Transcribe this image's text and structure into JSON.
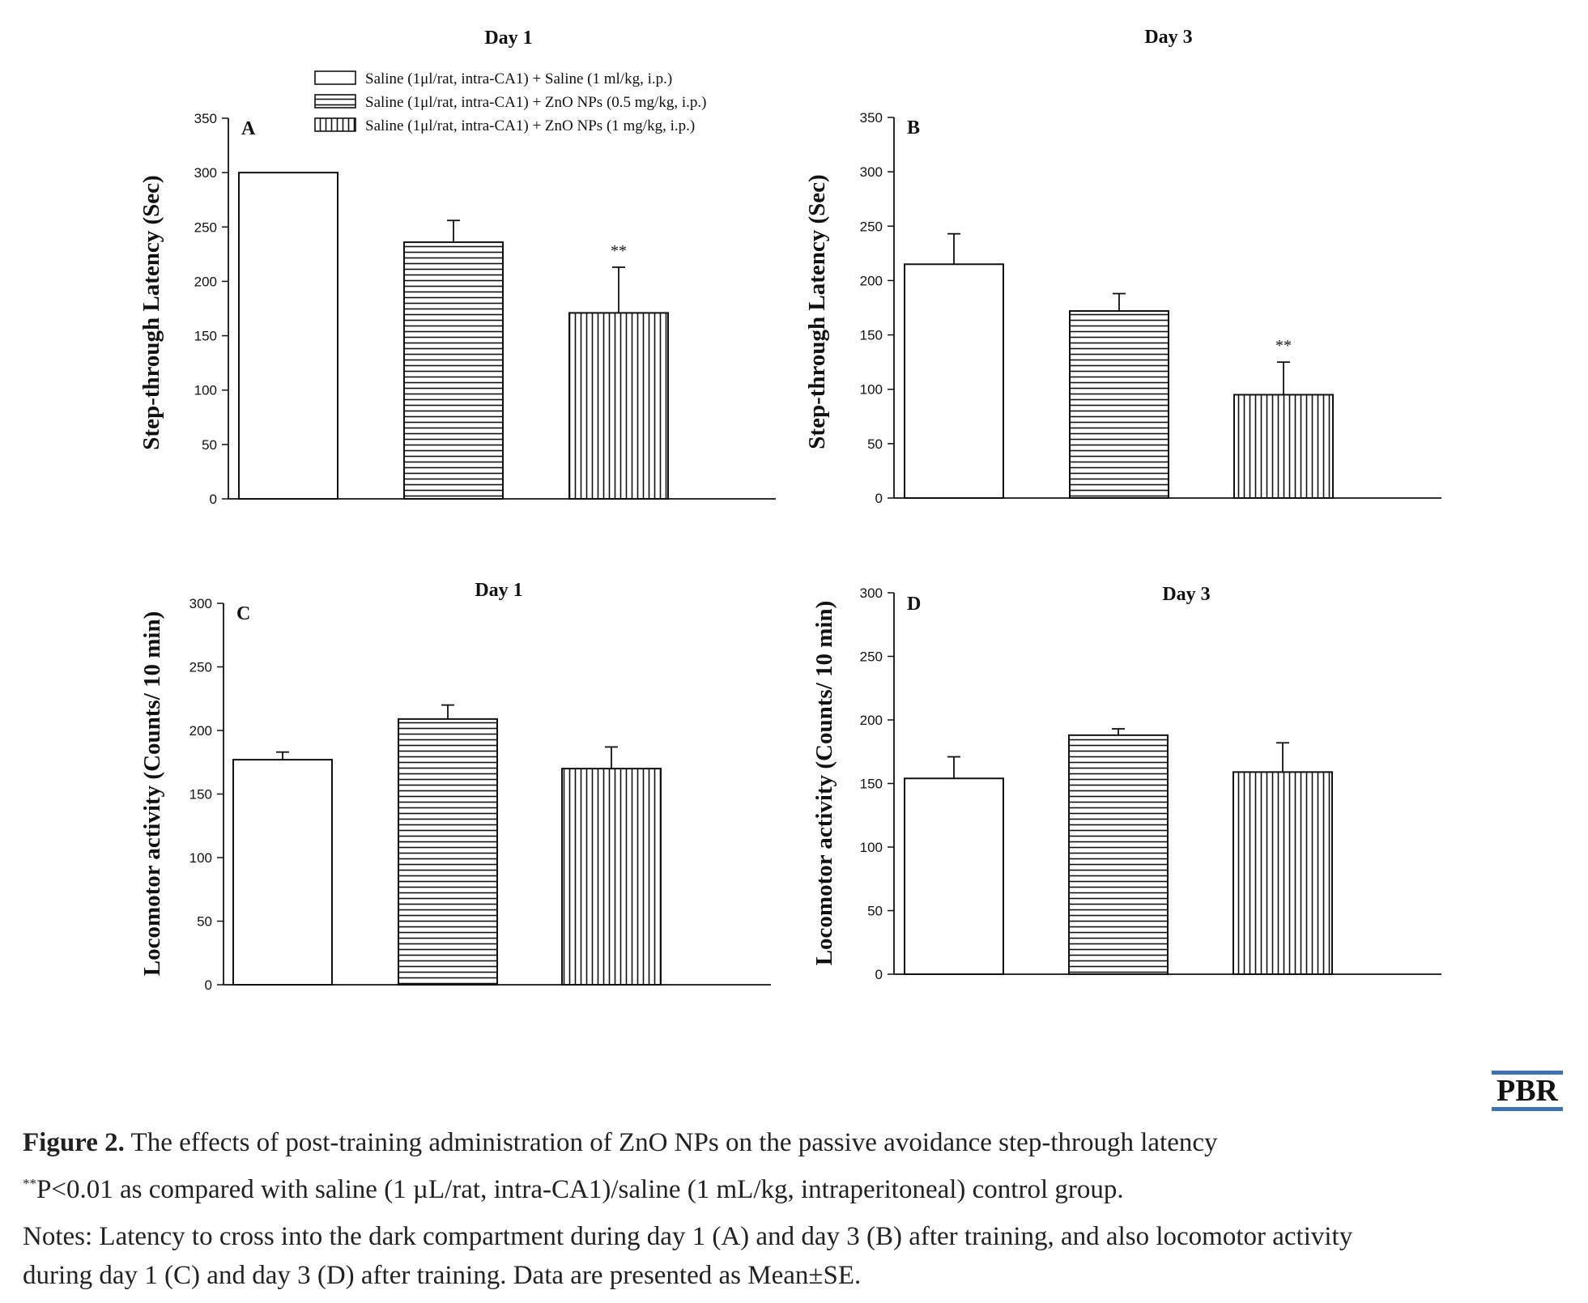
{
  "figure": {
    "caption": {
      "label": "Figure 2.",
      "text": " The effects of post-training administration of ZnO NPs on the passive avoidance step-through latency",
      "sig_mark": "**",
      "sig_text": "P<0.01 as compared with saline (1 µL/rat, intra-CA1)/saline (1 mL/kg, intraperitoneal) control group.",
      "notes_line1": "Notes: Latency to cross into the dark compartment during day 1 (A) and day 3 (B) after training, and also locomotor activity",
      "notes_line2": "during day 1 (C) and day 3 (D) after training. Data are presented as Mean±SE."
    },
    "logo": "PBR"
  },
  "chart_data": [
    {
      "type": "bar",
      "panel": "A",
      "title": "Day 1",
      "ylabel": "Step-through Latency (Sec)",
      "xlabel": "",
      "ylim": [
        0,
        350
      ],
      "yticks": [
        0,
        50,
        100,
        150,
        200,
        250,
        300,
        350
      ],
      "legend": {
        "position": "top",
        "entries": [
          "Saline (1μl/rat, intra-CA1) + Saline (1 ml/kg, i.p.)",
          "Saline (1μl/rat, intra-CA1) + ZnO NPs (0.5 mg/kg, i.p.)",
          "Saline (1μl/rat, intra-CA1) + ZnO NPs (1 mg/kg, i.p.)"
        ]
      },
      "series": [
        {
          "name": "Saline (1μl/rat, intra-CA1) + Saline (1 ml/kg, i.p.)",
          "pattern": "blank",
          "value": 300,
          "se": 0,
          "annotation": ""
        },
        {
          "name": "Saline (1μl/rat, intra-CA1) + ZnO NPs (0.5 mg/kg, i.p.)",
          "pattern": "horizontal",
          "value": 236,
          "se": 20,
          "annotation": ""
        },
        {
          "name": "Saline (1μl/rat, intra-CA1) + ZnO NPs (1 mg/kg, i.p.)",
          "pattern": "vertical",
          "value": 171,
          "se": 42,
          "annotation": "**"
        }
      ]
    },
    {
      "type": "bar",
      "panel": "B",
      "title": "Day 3",
      "ylabel": "Step-through Latency (Sec)",
      "xlabel": "",
      "ylim": [
        0,
        350
      ],
      "yticks": [
        0,
        50,
        100,
        150,
        200,
        250,
        300,
        350
      ],
      "series": [
        {
          "name": "Saline (1μl/rat, intra-CA1) + Saline (1 ml/kg, i.p.)",
          "pattern": "blank",
          "value": 215,
          "se": 28,
          "annotation": ""
        },
        {
          "name": "Saline (1μl/rat, intra-CA1) + ZnO NPs (0.5 mg/kg, i.p.)",
          "pattern": "horizontal",
          "value": 172,
          "se": 16,
          "annotation": ""
        },
        {
          "name": "Saline (1μl/rat, intra-CA1) + ZnO NPs (1 mg/kg, i.p.)",
          "pattern": "vertical",
          "value": 95,
          "se": 30,
          "annotation": "**"
        }
      ]
    },
    {
      "type": "bar",
      "panel": "C",
      "title": "Day 1",
      "ylabel": "Locomotor activity (Counts/ 10 min)",
      "xlabel": "",
      "ylim": [
        0,
        300
      ],
      "yticks": [
        0,
        50,
        100,
        150,
        200,
        250,
        300
      ],
      "series": [
        {
          "name": "Saline (1μl/rat, intra-CA1) + Saline (1 ml/kg, i.p.)",
          "pattern": "blank",
          "value": 177,
          "se": 6,
          "annotation": ""
        },
        {
          "name": "Saline (1μl/rat, intra-CA1) + ZnO NPs (0.5 mg/kg, i.p.)",
          "pattern": "horizontal",
          "value": 209,
          "se": 11,
          "annotation": ""
        },
        {
          "name": "Saline (1μl/rat, intra-CA1) + ZnO NPs (1 mg/kg, i.p.)",
          "pattern": "vertical",
          "value": 170,
          "se": 17,
          "annotation": ""
        }
      ]
    },
    {
      "type": "bar",
      "panel": "D",
      "title": "Day 3",
      "ylabel": "Locomotor activity (Counts/ 10 min)",
      "xlabel": "",
      "ylim": [
        0,
        300
      ],
      "yticks": [
        0,
        50,
        100,
        150,
        200,
        250,
        300
      ],
      "series": [
        {
          "name": "Saline (1μl/rat, intra-CA1) + Saline (1 ml/kg, i.p.)",
          "pattern": "blank",
          "value": 154,
          "se": 17,
          "annotation": ""
        },
        {
          "name": "Saline (1μl/rat, intra-CA1) + ZnO NPs (0.5 mg/kg, i.p.)",
          "pattern": "horizontal",
          "value": 188,
          "se": 5,
          "annotation": ""
        },
        {
          "name": "Saline (1μl/rat, intra-CA1) + ZnO NPs (1 mg/kg, i.p.)",
          "pattern": "vertical",
          "value": 159,
          "se": 23,
          "annotation": ""
        }
      ]
    }
  ]
}
